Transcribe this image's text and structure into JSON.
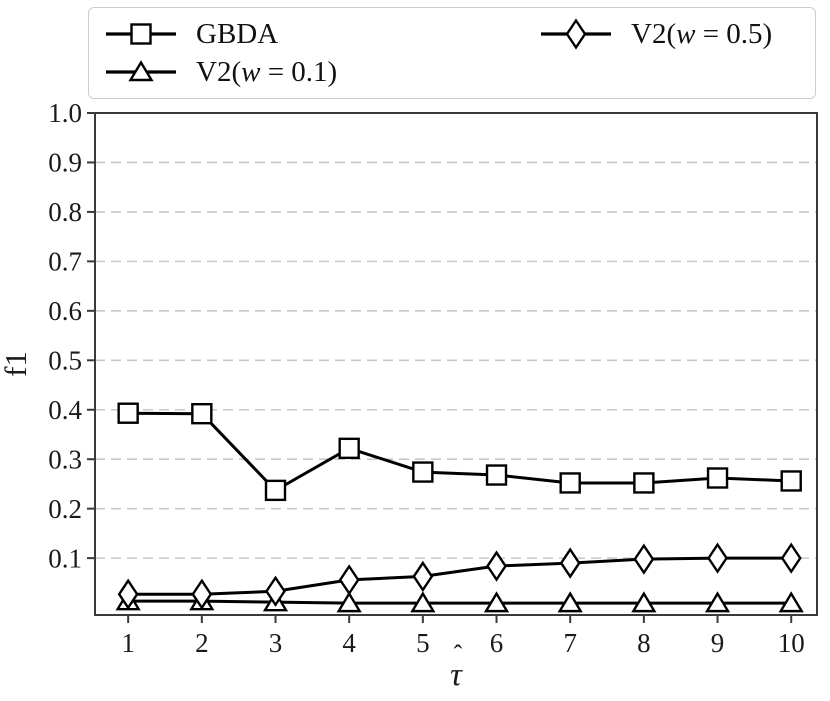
{
  "figure": {
    "background": "#ffffff",
    "series_color": "#000000",
    "marker_fill": "#ffffff",
    "grid_color": "#c8c8c8",
    "spine_color": "#3a3a3a",
    "text_color": "#1a1a1a"
  },
  "legend": {
    "entries": [
      {
        "label": "GBDA",
        "marker": "square"
      },
      {
        "label": "V2(w = 0.1)",
        "marker": "triangle"
      },
      {
        "label": "V2(w = 0.5)",
        "marker": "diamond"
      }
    ]
  },
  "chart_data": {
    "type": "line",
    "title": "",
    "xlabel": "τ̂",
    "ylabel": "f1",
    "x": [
      1,
      2,
      3,
      4,
      5,
      6,
      7,
      8,
      9,
      10
    ],
    "series": [
      {
        "name": "GBDA",
        "marker": "square",
        "values": [
          0.393,
          0.392,
          0.237,
          0.322,
          0.274,
          0.268,
          0.252,
          0.252,
          0.262,
          0.256
        ]
      },
      {
        "name": "V2(w = 0.1)",
        "marker": "triangle",
        "values": [
          0.013,
          0.013,
          0.011,
          0.009,
          0.009,
          0.009,
          0.009,
          0.009,
          0.009,
          0.009
        ]
      },
      {
        "name": "V2(w = 0.5)",
        "marker": "diamond",
        "values": [
          0.027,
          0.027,
          0.033,
          0.056,
          0.063,
          0.084,
          0.09,
          0.098,
          0.1,
          0.1
        ]
      }
    ],
    "xticks": [
      1,
      2,
      3,
      4,
      5,
      6,
      7,
      8,
      9,
      10
    ],
    "yticks": [
      0.1,
      0.2,
      0.3,
      0.4,
      0.5,
      0.6,
      0.7,
      0.8,
      0.9,
      1.0
    ],
    "xlim": [
      0.55,
      10.35
    ],
    "ylim": [
      -0.015,
      1.0
    ],
    "grid": "horizontal-dashed",
    "legend_position": "top-outside"
  }
}
